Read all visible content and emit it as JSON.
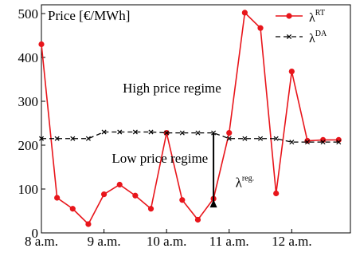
{
  "chart_data": {
    "type": "line",
    "title": "Price [€/MWh]",
    "xlabel": "",
    "ylabel": "",
    "x_tick_labels": [
      "8 a.m.",
      "9 a.m.",
      "10 a.m.",
      "11 a.m.",
      "12 a.m."
    ],
    "x_tick_positions": [
      0,
      4,
      8,
      12,
      16
    ],
    "xlim": [
      0,
      19.75
    ],
    "ylim": [
      0,
      520
    ],
    "y_ticks": [
      0,
      100,
      200,
      300,
      400,
      500
    ],
    "grid": false,
    "legend_position": "top-right",
    "x": [
      0,
      1,
      2,
      3,
      4,
      5,
      6,
      7,
      8,
      9,
      10,
      11,
      12,
      13,
      14,
      15,
      16,
      17,
      18,
      19
    ],
    "series": [
      {
        "name": "λ",
        "name_sup": "RT",
        "color": "#e8151b",
        "marker": "circle",
        "values": [
          430,
          80,
          55,
          20,
          88,
          110,
          85,
          55,
          228,
          75,
          30,
          78,
          228,
          502,
          467,
          90,
          368,
          210,
          212,
          212
        ]
      },
      {
        "name": "λ",
        "name_sup": "DA",
        "color": "#000000",
        "marker": "x",
        "dashed": true,
        "values": [
          215,
          215,
          215,
          215,
          230,
          230,
          230,
          230,
          228,
          228,
          228,
          228,
          215,
          215,
          215,
          215,
          207,
          207,
          207,
          207
        ]
      }
    ],
    "annotations": [
      {
        "text": "High price regime",
        "x": 5.2,
        "y": 320
      },
      {
        "text": "Low price regime",
        "x": 4.5,
        "y": 160
      },
      {
        "text": "λ",
        "sup": "reg.",
        "x": 12.4,
        "y": 105
      }
    ],
    "arrow": {
      "x": 11,
      "y_from": 228,
      "y_to": 78
    }
  }
}
